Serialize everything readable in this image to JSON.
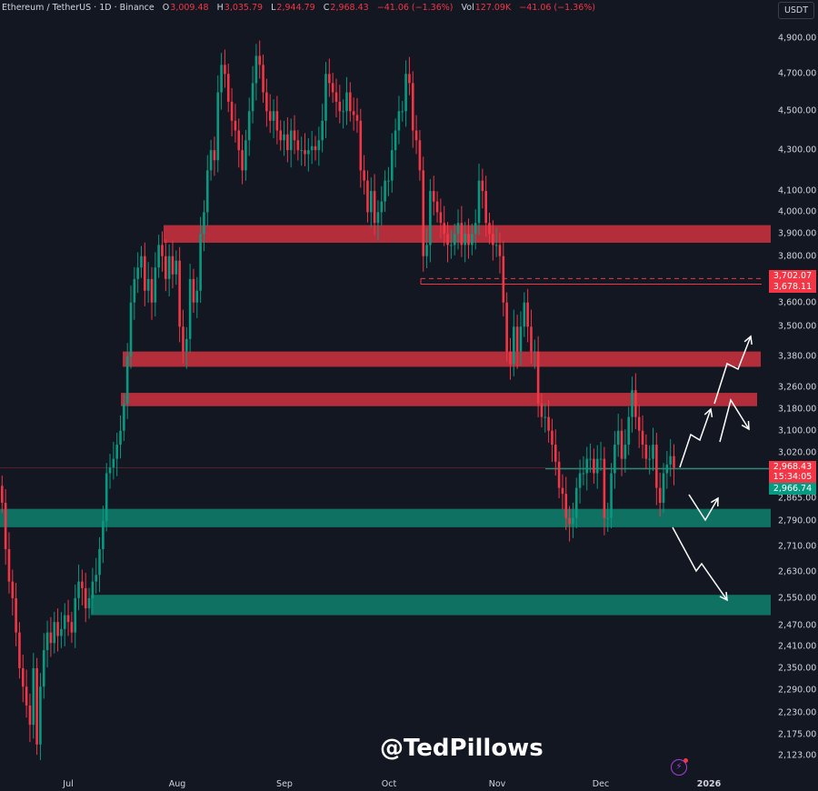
{
  "header": {
    "symbol": "Ethereum / TetherUS · 1D · Binance",
    "open_label": "O",
    "open": "3,009.48",
    "high_label": "H",
    "high": "3,035.79",
    "low_label": "L",
    "low": "2,944.79",
    "close_label": "C",
    "close": "2,968.43",
    "change": "−41.06 (−1.36%)",
    "vol_label": "Vol",
    "vol": "127.09K",
    "change2": "−41.06 (−1.36%)",
    "currency": "USDT"
  },
  "watermark": "@TedPillows",
  "colors": {
    "background": "#131722",
    "up": "#089981",
    "down": "#f23645",
    "resistance_zone": "#c1313d",
    "support_zone": "#0f7a68"
  },
  "chart_data": {
    "type": "candlestick",
    "y_scale": "log",
    "ylim": [
      2080,
      5000
    ],
    "y_ticks": [
      "4,900.00",
      "4,700.00",
      "4,500.00",
      "4,300.00",
      "4,100.00",
      "4,000.00",
      "3,900.00",
      "3,800.00",
      "3,600.00",
      "3,500.00",
      "3,380.00",
      "3,260.00",
      "3,180.00",
      "3,100.00",
      "3,020.00",
      "2,865.00",
      "2,790.00",
      "2,710.00",
      "2,630.00",
      "2,550.00",
      "2,470.00",
      "2,410.00",
      "2,350.00",
      "2,290.00",
      "2,230.00",
      "2,175.00",
      "2,123.00"
    ],
    "x_ticks": [
      "Jul",
      "Aug",
      "Sep",
      "Oct",
      "Nov",
      "Dec",
      "2026"
    ],
    "start_date": "2025-06-11",
    "closes": [
      2850,
      2700,
      2600,
      2550,
      2450,
      2350,
      2300,
      2250,
      2200,
      2350,
      2150,
      2300,
      2400,
      2450,
      2420,
      2480,
      2440,
      2460,
      2500,
      2480,
      2450,
      2550,
      2600,
      2580,
      2520,
      2550,
      2600,
      2620,
      2700,
      2790,
      2950,
      2970,
      3000,
      3050,
      3100,
      3200,
      3380,
      3600,
      3700,
      3750,
      3800,
      3650,
      3700,
      3600,
      3750,
      3850,
      3800,
      3700,
      3800,
      3720,
      3780,
      3500,
      3400,
      3450,
      3700,
      3600,
      3650,
      3900,
      4000,
      4200,
      4300,
      4250,
      4600,
      4750,
      4700,
      4550,
      4450,
      4400,
      4300,
      4200,
      4350,
      4500,
      4650,
      4800,
      4750,
      4600,
      4500,
      4450,
      4500,
      4400,
      4350,
      4380,
      4300,
      4400,
      4350,
      4300,
      4300,
      4280,
      4300,
      4320,
      4300,
      4350,
      4450,
      4700,
      4650,
      4600,
      4550,
      4500,
      4500,
      4600,
      4500,
      4480,
      4450,
      4200,
      4150,
      4000,
      4100,
      3950,
      4000,
      4050,
      4150,
      4150,
      4300,
      4400,
      4500,
      4500,
      4700,
      4650,
      4400,
      4350,
      4200,
      3800,
      3850,
      4100,
      4050,
      4000,
      3950,
      3900,
      3850,
      3850,
      3900,
      3950,
      3850,
      3900,
      3850,
      3900,
      3950,
      4150,
      4100,
      3950,
      3900,
      3850,
      3850,
      3800,
      3600,
      3400,
      3350,
      3500,
      3400,
      3500,
      3600,
      3500,
      3400,
      3400,
      3200,
      3150,
      3150,
      3100,
      3050,
      2990,
      2900,
      2880,
      2800,
      2780,
      2800,
      2900,
      2950,
      2950,
      3000,
      3000,
      2950,
      3000,
      3000,
      2800,
      2800,
      2950,
      3050,
      3100,
      3000,
      3050,
      3150,
      3250,
      3150,
      3100,
      3050,
      3000,
      3000,
      3050,
      2900,
      2850,
      2950,
      2980,
      3009.48,
      2968.43
    ],
    "zones": [
      {
        "kind": "resistance",
        "low": 3860,
        "high": 3940
      },
      {
        "kind": "resistance",
        "low": 3340,
        "high": 3400
      },
      {
        "kind": "resistance",
        "low": 3190,
        "high": 3240
      },
      {
        "kind": "support",
        "low": 2770,
        "high": 2830
      },
      {
        "kind": "support",
        "low": 2500,
        "high": 2560
      }
    ],
    "levels": [
      {
        "price": 3702.07,
        "label": "3,702.07",
        "style": "dashed"
      },
      {
        "price": 3678.11,
        "label": "3,678.11",
        "style": "solid"
      }
    ],
    "last_price": {
      "price": 2968.43,
      "label": "2,968.43",
      "countdown": "15:34:05"
    },
    "bid_price": {
      "price": 2966.74,
      "label": "2,966.74"
    }
  }
}
